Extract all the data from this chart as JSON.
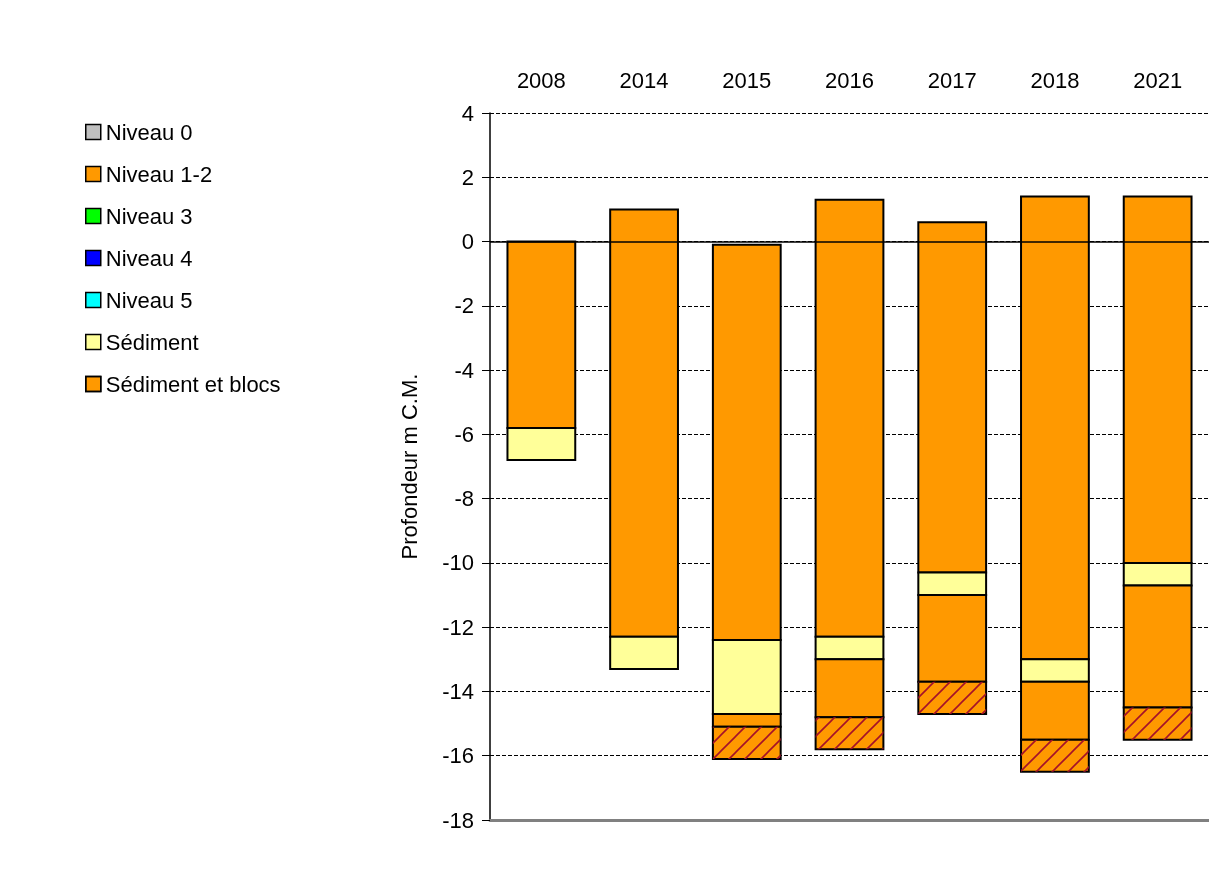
{
  "chart_data": {
    "type": "bar",
    "ylabel": "Profondeur m C.M.",
    "categories": [
      "2008",
      "2014",
      "2015",
      "2016",
      "2017",
      "2018",
      "2021"
    ],
    "series": [
      {
        "name": "Niveau 0",
        "color": "#c0c0c0",
        "values": [
          null,
          null,
          null,
          null,
          null,
          null,
          null
        ],
        "base": [
          null,
          null,
          null,
          null,
          null,
          null,
          null
        ]
      },
      {
        "name": "Niveau 1-2",
        "color": "#ff9900",
        "values": [
          5.8,
          13.3,
          12.3,
          13.6,
          10.9,
          14.4,
          11.4
        ],
        "base": [
          -5.8,
          -12.3,
          -12.4,
          -12.3,
          -10.3,
          -13.0,
          -10.0
        ]
      },
      {
        "name": "Niveau 3",
        "color": "#00ff00",
        "values": [
          null,
          null,
          null,
          null,
          null,
          null,
          null
        ],
        "base": [
          null,
          null,
          null,
          null,
          null,
          null,
          null
        ]
      },
      {
        "name": "Niveau 4",
        "color": "#0000ff",
        "values": [
          null,
          null,
          null,
          null,
          null,
          null,
          null
        ],
        "base": [
          null,
          null,
          null,
          null,
          null,
          null,
          null
        ]
      },
      {
        "name": "Niveau 5",
        "color": "#00ffff",
        "values": [
          null,
          null,
          null,
          null,
          null,
          null,
          null
        ],
        "base": [
          null,
          null,
          null,
          null,
          null,
          null,
          null
        ]
      },
      {
        "name": "Sédiment",
        "color": "#ffff99",
        "values": [
          1.0,
          1.0,
          2.3,
          0.7,
          0.7,
          0.7,
          0.7
        ],
        "base": [
          -6.8,
          -13.3,
          -14.7,
          -13.0,
          -11.0,
          -13.7,
          -10.7
        ]
      },
      {
        "color": "#ff9900",
        "values": [
          null,
          null,
          0.4,
          1.8,
          2.7,
          1.8,
          3.8
        ],
        "base": [
          null,
          null,
          -15.1,
          -14.8,
          -13.7,
          -15.5,
          -14.5
        ]
      },
      {
        "name": "Sédiment et blocs",
        "color": "#ff9900",
        "line_style": "dashed",
        "values": [
          null,
          null,
          1.0,
          1.0,
          1.0,
          1.0,
          1.0
        ],
        "base": [
          null,
          null,
          -16.1,
          -15.8,
          -14.7,
          -16.5,
          -15.5
        ]
      }
    ],
    "ylim": [
      -18,
      4
    ],
    "yticks": [
      -18,
      -16,
      -14,
      -12,
      -10,
      -8,
      -6,
      -4,
      -2,
      0,
      2,
      4
    ],
    "ref_lines": [
      {
        "axis": "y",
        "value": 0
      }
    ],
    "grid": "y",
    "legend": "left"
  }
}
